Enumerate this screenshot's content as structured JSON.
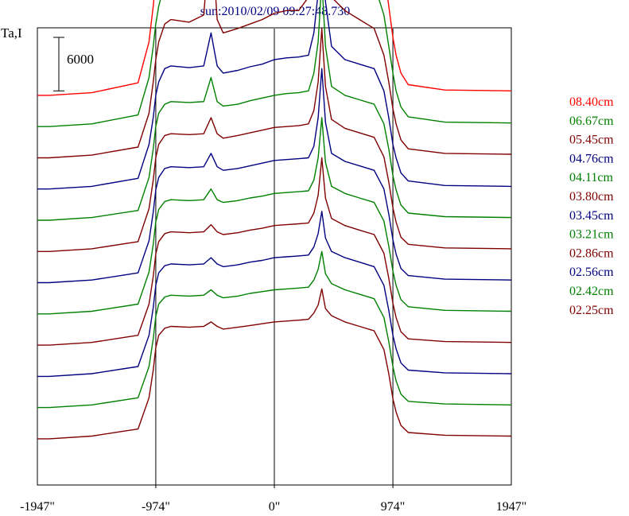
{
  "chart_data": {
    "type": "line",
    "title": "sun:2010/02/09 09:27:48.730",
    "ylabel": "Ta,I",
    "scale_bar_label": "6000",
    "scale_bar_value": 6000,
    "x_unit": "arcsec",
    "xlim": [
      -1947,
      1947
    ],
    "x_ticks": [
      -1947,
      -974,
      0,
      974,
      1947
    ],
    "x_tick_labels": [
      "-1947\"",
      "-974\"",
      "0\"",
      "974\"",
      "1947\""
    ],
    "vertical_reference_lines": [
      -974,
      0,
      974
    ],
    "grid": false,
    "legend_position": "right",
    "x": [
      -1947,
      -1850,
      -1500,
      -1120,
      -1030,
      -995,
      -974,
      -950,
      -900,
      -850,
      -700,
      -580,
      -520,
      -470,
      -420,
      -300,
      -200,
      -100,
      0,
      100,
      200,
      280,
      325,
      360,
      390,
      420,
      470,
      580,
      700,
      820,
      900,
      940,
      974,
      1000,
      1040,
      1100,
      1400,
      1947
    ],
    "series": [
      {
        "name": "08.40cm",
        "color": "#ff0000",
        "offset": 43500,
        "values": [
          0,
          0,
          300,
          1400,
          6000,
          10000,
          13000,
          15000,
          18000,
          19500,
          19700,
          20000,
          25000,
          20000,
          17800,
          18000,
          18500,
          19200,
          20500,
          21000,
          21500,
          27000,
          30000,
          36000,
          47000,
          36000,
          27000,
          22000,
          19000,
          18800,
          14000,
          10000,
          6500,
          4500,
          2500,
          1200,
          600,
          500
        ]
      },
      {
        "name": "06.67cm",
        "color": "#008000",
        "offset": 40000,
        "values": [
          0,
          0,
          300,
          1300,
          5500,
          9000,
          11500,
          13500,
          16000,
          17000,
          16800,
          18000,
          27000,
          17000,
          15000,
          15500,
          16000,
          16500,
          17200,
          17600,
          17800,
          21000,
          28000,
          36000,
          55000,
          35000,
          21000,
          18000,
          16500,
          16000,
          12500,
          9000,
          6000,
          4000,
          2200,
          1100,
          500,
          400
        ]
      },
      {
        "name": "05.45cm",
        "color": "#800000",
        "offset": 36500,
        "values": [
          0,
          0,
          300,
          1200,
          5000,
          8500,
          11000,
          13000,
          15000,
          15500,
          15200,
          16000,
          26000,
          15500,
          14000,
          14500,
          15000,
          15500,
          16200,
          16500,
          16500,
          18000,
          24000,
          32000,
          63000,
          30000,
          18000,
          16500,
          15500,
          14500,
          11500,
          8500,
          5500,
          3800,
          2000,
          1000,
          500,
          400
        ]
      },
      {
        "name": "04.76cm",
        "color": "#000080",
        "offset": 33000,
        "values": [
          0,
          0,
          300,
          1200,
          5000,
          8000,
          10500,
          12000,
          13500,
          13800,
          13600,
          13800,
          17500,
          13800,
          13000,
          13300,
          13700,
          14000,
          14500,
          14700,
          14800,
          15000,
          17500,
          22000,
          30000,
          21000,
          16000,
          14500,
          14000,
          13500,
          11000,
          8000,
          5000,
          3500,
          1800,
          900,
          400,
          300
        ]
      },
      {
        "name": "04.11cm",
        "color": "#008000",
        "offset": 29500,
        "values": [
          0,
          0,
          300,
          1100,
          4800,
          8000,
          10500,
          12000,
          13000,
          13300,
          13200,
          13300,
          16000,
          13300,
          12800,
          13000,
          13400,
          13700,
          14000,
          14200,
          14300,
          14500,
          16500,
          20000,
          27000,
          19500,
          15000,
          14000,
          13500,
          13000,
          10800,
          8000,
          5000,
          3400,
          1700,
          800,
          400,
          300
        ]
      },
      {
        "name": "03.80cm",
        "color": "#800000",
        "offset": 26000,
        "values": [
          0,
          0,
          300,
          1100,
          4800,
          8000,
          10500,
          12000,
          13000,
          13200,
          13100,
          13200,
          15000,
          13200,
          12700,
          13000,
          13300,
          13600,
          13900,
          14000,
          14100,
          14300,
          15800,
          19000,
          25000,
          18500,
          14800,
          13800,
          13300,
          12800,
          10600,
          7800,
          4900,
          3300,
          1600,
          800,
          400,
          300
        ]
      },
      {
        "name": "03.45cm",
        "color": "#000080",
        "offset": 22500,
        "values": [
          0,
          0,
          300,
          1100,
          4700,
          7900,
          10400,
          11800,
          12800,
          13000,
          12900,
          13000,
          14500,
          13000,
          12600,
          12800,
          13100,
          13400,
          13700,
          13800,
          13900,
          14000,
          15300,
          18500,
          24000,
          18000,
          14500,
          13600,
          13100,
          12600,
          10500,
          7700,
          4800,
          3200,
          1600,
          800,
          400,
          300
        ]
      },
      {
        "name": "03.21cm",
        "color": "#008000",
        "offset": 19000,
        "values": [
          0,
          0,
          300,
          1100,
          4700,
          7800,
          10300,
          11700,
          12600,
          12800,
          12700,
          12800,
          14000,
          12800,
          12500,
          12700,
          13000,
          13200,
          13500,
          13600,
          13700,
          13800,
          15000,
          17500,
          22000,
          17000,
          14300,
          13500,
          13000,
          12500,
          10400,
          7600,
          4800,
          3200,
          1600,
          800,
          400,
          300
        ]
      },
      {
        "name": "02.86cm",
        "color": "#800000",
        "offset": 15500,
        "values": [
          0,
          0,
          300,
          1100,
          4600,
          7700,
          10200,
          11600,
          12500,
          12700,
          12600,
          12700,
          13500,
          12700,
          12400,
          12600,
          12900,
          13100,
          13400,
          13500,
          13600,
          13700,
          14800,
          16800,
          21000,
          16500,
          14200,
          13400,
          12900,
          12400,
          10300,
          7500,
          4700,
          3100,
          1500,
          700,
          400,
          300
        ]
      },
      {
        "name": "02.56cm",
        "color": "#000080",
        "offset": 12000,
        "values": [
          0,
          0,
          300,
          1100,
          4600,
          7700,
          10200,
          11600,
          12400,
          12600,
          12500,
          12600,
          13300,
          12600,
          12300,
          12500,
          12800,
          13000,
          13300,
          13400,
          13500,
          13600,
          14500,
          16000,
          18500,
          15500,
          14000,
          13300,
          12800,
          12300,
          10200,
          7400,
          4600,
          3100,
          1500,
          700,
          400,
          300
        ]
      },
      {
        "name": "02.42cm",
        "color": "#008000",
        "offset": 8500,
        "values": [
          0,
          0,
          300,
          1100,
          4600,
          7700,
          10200,
          11600,
          12400,
          12600,
          12500,
          12600,
          13200,
          12600,
          12300,
          12500,
          12800,
          13000,
          13200,
          13300,
          13400,
          13500,
          14300,
          15500,
          17500,
          15000,
          13900,
          13200,
          12700,
          12200,
          10100,
          7400,
          4600,
          3000,
          1500,
          700,
          400,
          300
        ]
      },
      {
        "name": "02.25cm",
        "color": "#800000",
        "offset": 5000,
        "values": [
          0,
          0,
          300,
          1100,
          4600,
          7700,
          10200,
          11600,
          12400,
          12600,
          12500,
          12600,
          13100,
          12600,
          12300,
          12500,
          12700,
          12900,
          13100,
          13200,
          13300,
          13400,
          14100,
          15000,
          16800,
          14600,
          13800,
          13100,
          12600,
          12100,
          10000,
          7300,
          4500,
          3000,
          1500,
          700,
          400,
          300
        ]
      }
    ]
  }
}
